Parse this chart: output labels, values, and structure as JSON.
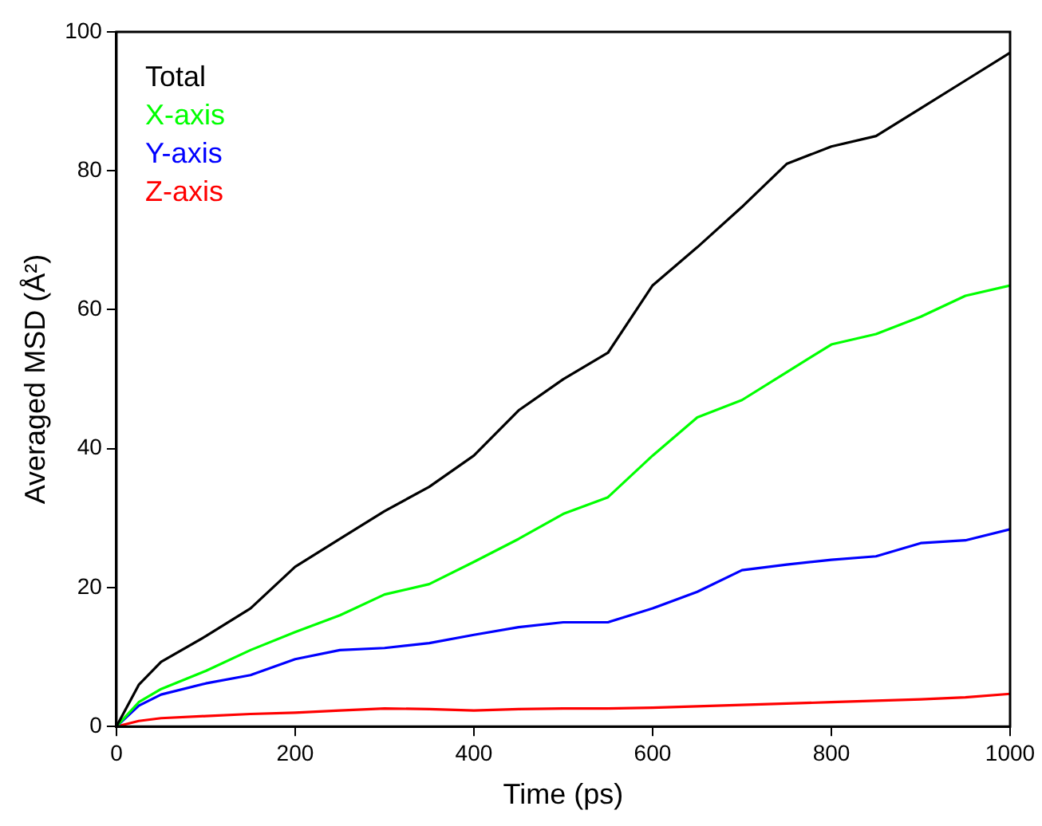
{
  "chart_data": {
    "type": "line",
    "xlabel": "Time (ps)",
    "ylabel": "Averaged MSD (Å²)",
    "x": [
      0,
      25,
      50,
      100,
      150,
      200,
      250,
      300,
      350,
      400,
      450,
      500,
      550,
      600,
      650,
      700,
      750,
      800,
      850,
      900,
      950,
      1000
    ],
    "xlim": [
      0,
      1000
    ],
    "xticks": [
      0,
      200,
      400,
      600,
      800,
      1000
    ],
    "ylim": [
      0,
      100
    ],
    "yticks": [
      0,
      20,
      40,
      60,
      80,
      100
    ],
    "grid": false,
    "legend": "top left",
    "marker": "none",
    "line_style": "solid",
    "series": [
      {
        "name": "Total",
        "color": "#000000",
        "values": [
          0,
          6,
          9.3,
          13,
          17,
          23,
          27,
          31,
          34.5,
          39,
          45.5,
          50,
          53.8,
          63.5,
          69,
          74.8,
          81,
          83.5,
          85,
          89,
          93,
          97
        ]
      },
      {
        "name": "X-axis",
        "color": "#00ff00",
        "values": [
          0,
          3.5,
          5.4,
          8,
          11,
          13.6,
          16,
          19,
          20.5,
          23.7,
          27,
          30.6,
          33,
          39,
          44.5,
          47,
          51,
          55,
          56.5,
          59,
          62,
          63.5
        ]
      },
      {
        "name": "Y-axis",
        "color": "#0000ff",
        "values": [
          0,
          3,
          4.6,
          6.2,
          7.4,
          9.7,
          11,
          11.3,
          12,
          13.2,
          14.3,
          15,
          15,
          17,
          19.4,
          22.5,
          23.3,
          24,
          24.5,
          26.4,
          26.8,
          28.4
        ]
      },
      {
        "name": "Z-axis",
        "color": "#ff0000",
        "values": [
          0,
          0.8,
          1.2,
          1.5,
          1.8,
          2,
          2.3,
          2.6,
          2.5,
          2.3,
          2.5,
          2.6,
          2.6,
          2.7,
          2.9,
          3.1,
          3.3,
          3.5,
          3.7,
          3.9,
          4.2,
          4.7
        ]
      }
    ]
  }
}
